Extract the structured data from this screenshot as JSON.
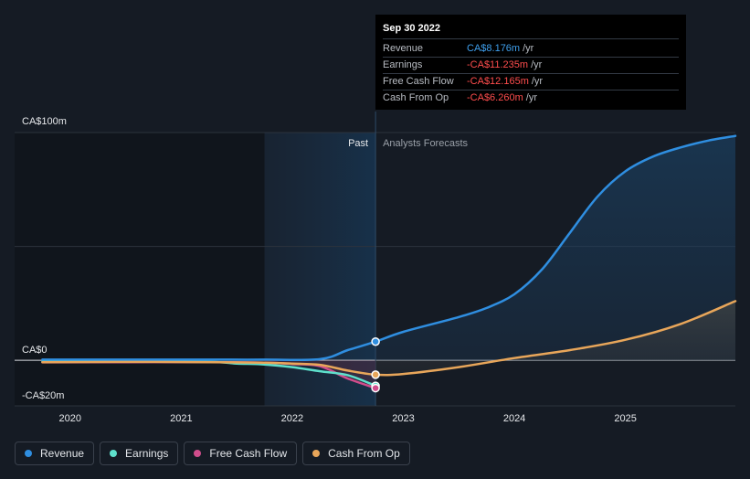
{
  "chart_data": {
    "type": "line",
    "x_unit": "year",
    "x_ticks": [
      2020,
      2021,
      2022,
      2023,
      2024,
      2025
    ],
    "xlim": [
      2019.5,
      2025.99
    ],
    "ylim": [
      -20,
      100
    ],
    "y_tick_labels": [
      {
        "value": 100,
        "label": "CA$100m"
      },
      {
        "value": 0,
        "label": "CA$0"
      },
      {
        "value": -20,
        "label": "-CA$20m"
      }
    ],
    "y_gridlines": [
      100,
      50,
      0
    ],
    "past_label": "Past",
    "forecast_label": "Analysts Forecasts",
    "divider_x": 2022.75,
    "highlight_start_x": 2021.75,
    "series": [
      {
        "name": "Revenue",
        "color": "#2f8ee0",
        "points": [
          [
            2019.75,
            0.3
          ],
          [
            2020.5,
            0.3
          ],
          [
            2021.25,
            0.3
          ],
          [
            2021.75,
            0.3
          ],
          [
            2022.25,
            0.5
          ],
          [
            2022.5,
            4.5
          ],
          [
            2022.75,
            8.2
          ],
          [
            2023.0,
            12.5
          ],
          [
            2023.5,
            19
          ],
          [
            2023.75,
            23
          ],
          [
            2024.0,
            29
          ],
          [
            2024.25,
            40
          ],
          [
            2024.5,
            56
          ],
          [
            2024.75,
            72
          ],
          [
            2025.0,
            83
          ],
          [
            2025.25,
            89.5
          ],
          [
            2025.5,
            93.5
          ],
          [
            2025.75,
            96.5
          ],
          [
            2025.99,
            98.5
          ]
        ],
        "forecast": true
      },
      {
        "name": "Earnings",
        "color": "#5ee0cc",
        "points": [
          [
            2019.75,
            -0.6
          ],
          [
            2020.5,
            -0.6
          ],
          [
            2021.25,
            -0.7
          ],
          [
            2021.5,
            -1.4
          ],
          [
            2021.75,
            -1.8
          ],
          [
            2022.0,
            -3.0
          ],
          [
            2022.25,
            -4.8
          ],
          [
            2022.5,
            -6.5
          ],
          [
            2022.75,
            -11.2
          ]
        ],
        "forecast": false
      },
      {
        "name": "Free Cash Flow",
        "color": "#d04d8c",
        "points": [
          [
            2019.75,
            -0.9
          ],
          [
            2020.5,
            -0.8
          ],
          [
            2021.25,
            -0.8
          ],
          [
            2021.75,
            -1.0
          ],
          [
            2022.0,
            -1.6
          ],
          [
            2022.25,
            -2.6
          ],
          [
            2022.5,
            -8.0
          ],
          [
            2022.75,
            -12.2
          ]
        ],
        "forecast": false
      },
      {
        "name": "Cash From Op",
        "color": "#e8a65a",
        "points": [
          [
            2019.75,
            -0.8
          ],
          [
            2020.5,
            -0.7
          ],
          [
            2021.25,
            -0.8
          ],
          [
            2021.75,
            -1.0
          ],
          [
            2022.0,
            -1.4
          ],
          [
            2022.25,
            -2.0
          ],
          [
            2022.5,
            -4.5
          ],
          [
            2022.75,
            -6.3
          ],
          [
            2023.0,
            -6.0
          ],
          [
            2023.5,
            -3.0
          ],
          [
            2024.0,
            1.0
          ],
          [
            2024.5,
            4.5
          ],
          [
            2025.0,
            9.0
          ],
          [
            2025.5,
            16.0
          ],
          [
            2025.99,
            26.0
          ]
        ],
        "forecast": true
      }
    ],
    "highlight_points": [
      {
        "series": "Revenue",
        "x": 2022.75,
        "y": 8.2
      },
      {
        "series": "Cash From Op",
        "x": 2022.75,
        "y": -6.3
      },
      {
        "series": "Earnings",
        "x": 2022.75,
        "y": -11.2
      },
      {
        "series": "Free Cash Flow",
        "x": 2022.75,
        "y": -12.2
      }
    ]
  },
  "tooltip": {
    "date": "Sep 30 2022",
    "rows": [
      {
        "label": "Revenue",
        "value": "CA$8.176m",
        "unit": "/yr",
        "sign": "pos"
      },
      {
        "label": "Earnings",
        "value": "-CA$11.235m",
        "unit": "/yr",
        "sign": "neg"
      },
      {
        "label": "Free Cash Flow",
        "value": "-CA$12.165m",
        "unit": "/yr",
        "sign": "neg"
      },
      {
        "label": "Cash From Op",
        "value": "-CA$6.260m",
        "unit": "/yr",
        "sign": "neg"
      }
    ]
  },
  "legend": [
    {
      "label": "Revenue",
      "color": "#2f8ee0"
    },
    {
      "label": "Earnings",
      "color": "#5ee0cc"
    },
    {
      "label": "Free Cash Flow",
      "color": "#d04d8c"
    },
    {
      "label": "Cash From Op",
      "color": "#e8a65a"
    }
  ]
}
